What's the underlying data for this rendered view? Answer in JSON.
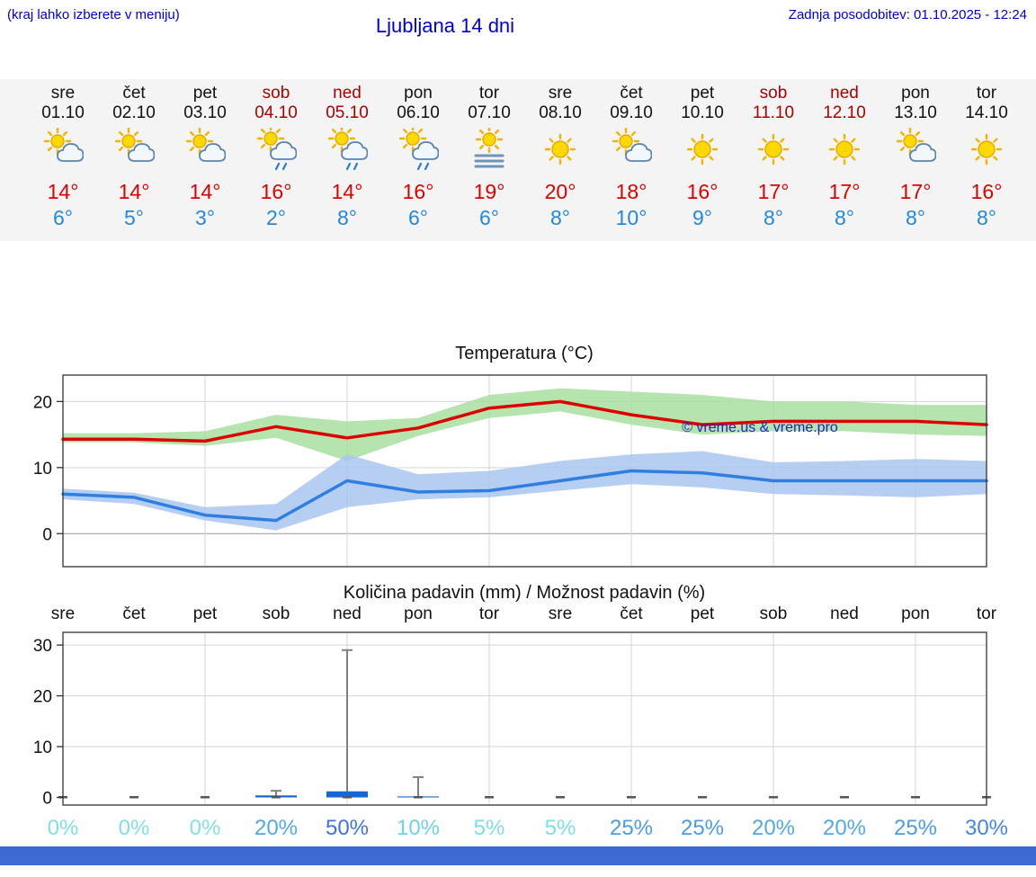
{
  "colors": {
    "link_blue": "#0000cc",
    "high_temp_red": "#dd0000",
    "low_temp_blue": "#2288dd",
    "weekend_red": "#aa0000",
    "strip_bg": "#f4f4f4",
    "footer_blue": "#3c6bd1"
  },
  "header": {
    "hint": "(kraj lahko izberete v meniju)",
    "title": "Ljubljana 14 dni",
    "updated": "Zadnja posodobitev: 01.10.2025 - 12:24"
  },
  "forecast": {
    "days": [
      {
        "day": "sre",
        "date": "01.10",
        "weekend": false,
        "icon": "partly",
        "high": "14°",
        "low": "6°"
      },
      {
        "day": "čet",
        "date": "02.10",
        "weekend": false,
        "icon": "partly",
        "high": "14°",
        "low": "5°"
      },
      {
        "day": "pet",
        "date": "03.10",
        "weekend": false,
        "icon": "partly",
        "high": "14°",
        "low": "3°"
      },
      {
        "day": "sob",
        "date": "04.10",
        "weekend": true,
        "icon": "shower",
        "high": "16°",
        "low": "2°"
      },
      {
        "day": "ned",
        "date": "05.10",
        "weekend": true,
        "icon": "shower",
        "high": "14°",
        "low": "8°"
      },
      {
        "day": "pon",
        "date": "06.10",
        "weekend": false,
        "icon": "shower",
        "high": "16°",
        "low": "6°"
      },
      {
        "day": "tor",
        "date": "07.10",
        "weekend": false,
        "icon": "fog",
        "high": "19°",
        "low": "6°"
      },
      {
        "day": "sre",
        "date": "08.10",
        "weekend": false,
        "icon": "sunny",
        "high": "20°",
        "low": "8°"
      },
      {
        "day": "čet",
        "date": "09.10",
        "weekend": false,
        "icon": "partly",
        "high": "18°",
        "low": "10°"
      },
      {
        "day": "pet",
        "date": "10.10",
        "weekend": false,
        "icon": "sunny",
        "high": "16°",
        "low": "9°"
      },
      {
        "day": "sob",
        "date": "11.10",
        "weekend": true,
        "icon": "sunny",
        "high": "17°",
        "low": "8°"
      },
      {
        "day": "ned",
        "date": "12.10",
        "weekend": true,
        "icon": "sunny",
        "high": "17°",
        "low": "8°"
      },
      {
        "day": "pon",
        "date": "13.10",
        "weekend": false,
        "icon": "partly",
        "high": "17°",
        "low": "8°"
      },
      {
        "day": "tor",
        "date": "14.10",
        "weekend": false,
        "icon": "sunny",
        "high": "16°",
        "low": "8°"
      }
    ]
  },
  "chart_data": [
    {
      "type": "line",
      "title": "Temperatura (°C)",
      "x_labels": [
        "sre",
        "čet",
        "pet",
        "sob",
        "ned",
        "pon",
        "tor",
        "sre",
        "čet",
        "pet",
        "sob",
        "ned",
        "pon",
        "tor"
      ],
      "ylim": [
        -5,
        24
      ],
      "yticks": [
        0,
        10,
        20
      ],
      "grid": true,
      "series": [
        {
          "name": "max-temp",
          "color": "#dd0000",
          "values": [
            14.3,
            14.3,
            14,
            16.2,
            14.5,
            16,
            19,
            20,
            18,
            16.5,
            17,
            17,
            17,
            16.5
          ]
        },
        {
          "name": "min-temp",
          "color": "#2e7fe0",
          "values": [
            6,
            5.5,
            2.8,
            2,
            8,
            6.3,
            6.5,
            8,
            9.5,
            9.2,
            8,
            8,
            8,
            8
          ]
        }
      ],
      "bands": [
        {
          "name": "max-temp-range",
          "color": "#a8dfa0",
          "upper": [
            15.2,
            15.2,
            15.5,
            18,
            17,
            17.5,
            21,
            22,
            21.5,
            21,
            20,
            20,
            19.5,
            19.5
          ],
          "lower": [
            13.8,
            13.8,
            13.3,
            14.5,
            11,
            14.8,
            17.5,
            18.5,
            16.5,
            15,
            15.5,
            15.5,
            15,
            14.8
          ]
        },
        {
          "name": "min-temp-range",
          "color": "#a9c6ef",
          "upper": [
            6.8,
            6.2,
            4,
            4.5,
            12,
            9,
            9.5,
            11,
            12,
            12.5,
            10.8,
            11,
            11.3,
            11
          ],
          "lower": [
            5.2,
            4.5,
            2,
            0.5,
            4,
            5.2,
            5.5,
            6.5,
            7.5,
            7,
            6,
            5.8,
            5.5,
            6
          ]
        }
      ],
      "watermark": "© vreme.us & vreme.pro"
    },
    {
      "type": "bar",
      "title": "Količina padavin (mm) / Možnost padavin (%)",
      "x_labels": [
        "sre",
        "čet",
        "pet",
        "sob",
        "ned",
        "pon",
        "tor",
        "sre",
        "čet",
        "pet",
        "sob",
        "ned",
        "pon",
        "tor"
      ],
      "ylim": [
        -1.5,
        32.5
      ],
      "yticks": [
        0,
        10,
        20,
        30
      ],
      "bar_values_mm": [
        0,
        0,
        0,
        0.4,
        1.2,
        0.2,
        0,
        0,
        0,
        0,
        0,
        0,
        0,
        0
      ],
      "whisker_max_mm": [
        0,
        0,
        0,
        1.3,
        29,
        4,
        0,
        0,
        0,
        0,
        0,
        0,
        0,
        0
      ],
      "bar_color": "#1766d9",
      "probabilities": [
        {
          "label": "0%",
          "color": "#82dfe8"
        },
        {
          "label": "0%",
          "color": "#82dfe8"
        },
        {
          "label": "0%",
          "color": "#82dfe8"
        },
        {
          "label": "20%",
          "color": "#53a8e2"
        },
        {
          "label": "50%",
          "color": "#4072d8"
        },
        {
          "label": "10%",
          "color": "#6fd2e8"
        },
        {
          "label": "5%",
          "color": "#7edde9"
        },
        {
          "label": "5%",
          "color": "#7edde9"
        },
        {
          "label": "25%",
          "color": "#4d9ce0"
        },
        {
          "label": "25%",
          "color": "#4d9ce0"
        },
        {
          "label": "20%",
          "color": "#53a8e2"
        },
        {
          "label": "20%",
          "color": "#53a8e2"
        },
        {
          "label": "25%",
          "color": "#4d9ce0"
        },
        {
          "label": "30%",
          "color": "#4388dc"
        }
      ]
    }
  ]
}
